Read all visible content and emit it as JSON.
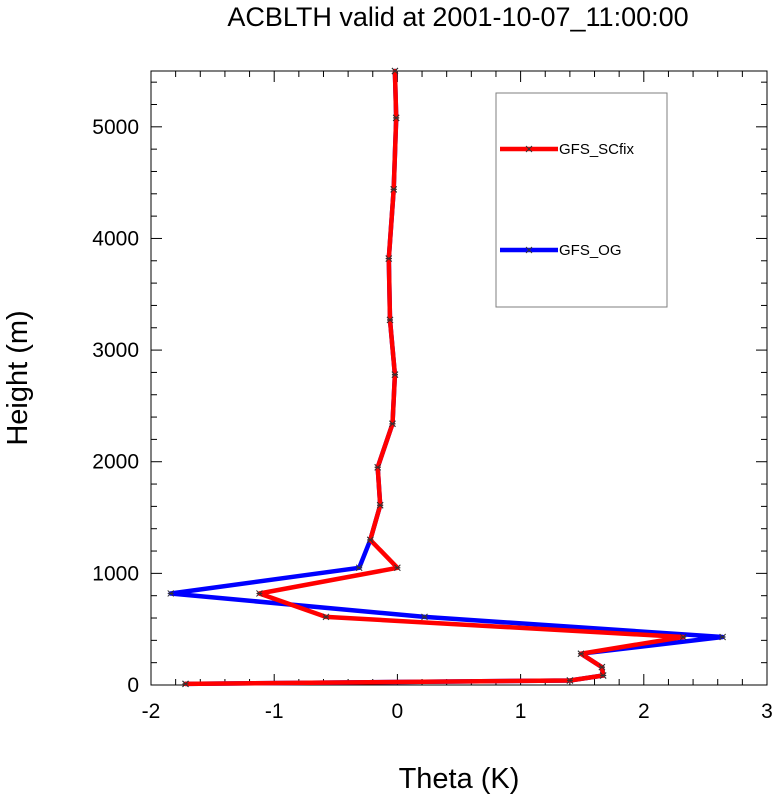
{
  "chart_data": {
    "type": "line",
    "title": "ACBLTH valid at 2001-10-07_11:00:00",
    "xlabel": "Theta (K)",
    "ylabel": "Height (m)",
    "xlim": [
      -2,
      3
    ],
    "ylim": [
      0,
      5500
    ],
    "xticks": [
      -2,
      -1,
      0,
      1,
      2,
      3
    ],
    "yticks": [
      0,
      1000,
      2000,
      3000,
      4000,
      5000
    ],
    "grid": false,
    "legend_position": "top-right",
    "colors": {
      "GFS_SCfix": "#ff0000",
      "GFS_OG": "#0000ff",
      "marker": "#333333"
    },
    "series": [
      {
        "name": "GFS_SCfix",
        "points": [
          [
            -1.72,
            10
          ],
          [
            1.4,
            40
          ],
          [
            1.67,
            85
          ],
          [
            1.66,
            160
          ],
          [
            1.49,
            280
          ],
          [
            2.32,
            430
          ],
          [
            -0.58,
            610
          ],
          [
            -1.12,
            820
          ],
          [
            0.0,
            1050
          ],
          [
            -0.22,
            1300
          ],
          [
            -0.14,
            1610
          ],
          [
            -0.16,
            1950
          ],
          [
            -0.04,
            2340
          ],
          [
            -0.02,
            2780
          ],
          [
            -0.06,
            3270
          ],
          [
            -0.07,
            3820
          ],
          [
            -0.03,
            4440
          ],
          [
            -0.01,
            5080
          ],
          [
            -0.02,
            5500
          ]
        ]
      },
      {
        "name": "GFS_OG",
        "points": [
          [
            -1.72,
            10
          ],
          [
            1.4,
            40
          ],
          [
            1.67,
            85
          ],
          [
            1.66,
            160
          ],
          [
            1.49,
            280
          ],
          [
            2.64,
            430
          ],
          [
            0.22,
            610
          ],
          [
            -1.84,
            820
          ],
          [
            -0.31,
            1050
          ],
          [
            -0.22,
            1300
          ],
          [
            -0.14,
            1610
          ],
          [
            -0.16,
            1950
          ],
          [
            -0.04,
            2340
          ],
          [
            -0.02,
            2780
          ],
          [
            -0.06,
            3270
          ],
          [
            -0.07,
            3820
          ],
          [
            -0.03,
            4440
          ],
          [
            -0.01,
            5080
          ],
          [
            -0.02,
            5500
          ]
        ]
      }
    ],
    "legend_draw_order": [
      "GFS_SCfix",
      "GFS_OG"
    ]
  }
}
